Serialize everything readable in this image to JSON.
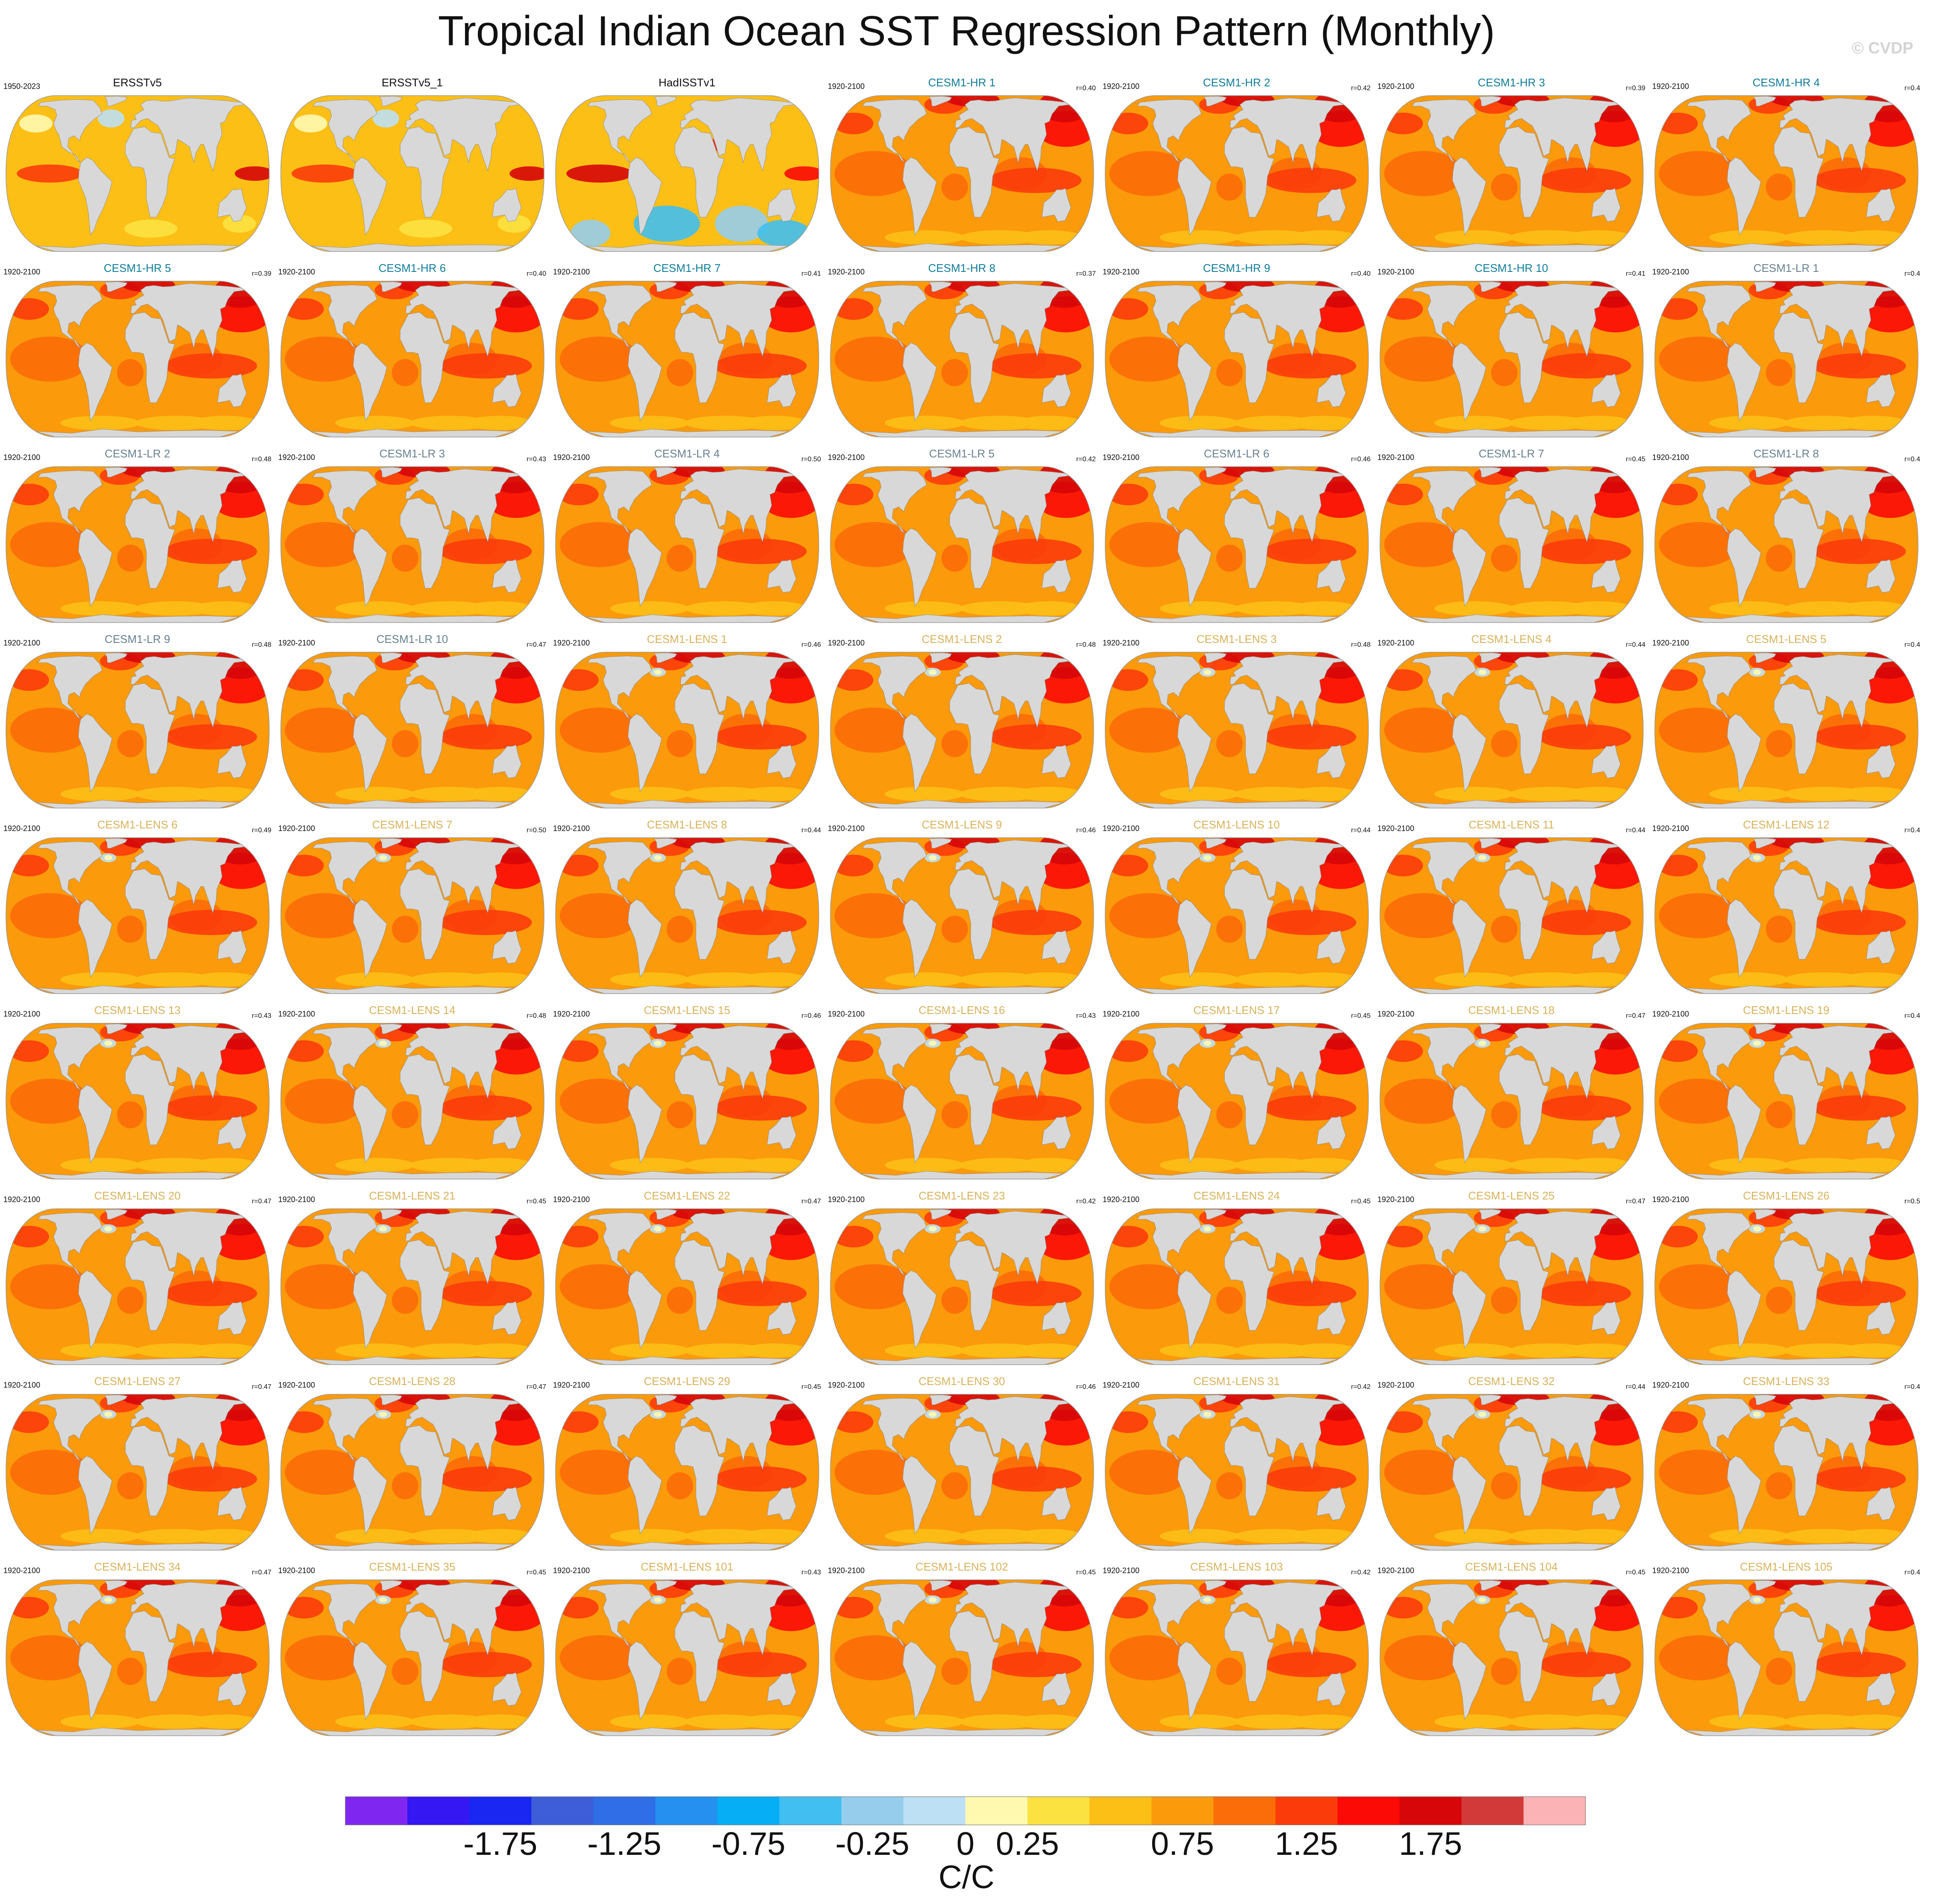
{
  "title": "Tropical Indian Ocean SST Regression Pattern (Monthly)",
  "watermark": "© CVDP",
  "colorbar": {
    "unit": "C/C",
    "tick_labels": [
      "-1.75",
      "-1.25",
      "-0.75",
      "-0.25",
      "0",
      "0.25",
      "0.75",
      "1.25",
      "1.75"
    ],
    "colors": [
      "#7f27f0",
      "#3417f2",
      "#1a26f2",
      "#3d5ed8",
      "#2f6ee6",
      "#2590f0",
      "#06aef5",
      "#40bff0",
      "#96cdec",
      "#bde0f5",
      "#fff9b0",
      "#fce240",
      "#fcbf16",
      "#fb9a0b",
      "#fb6d08",
      "#fb3c0a",
      "#fb0a06",
      "#d60609",
      "#d23a3a",
      "#fcb3b6"
    ]
  },
  "colors": {
    "obs_title": "#111111",
    "hr_title": "#0f7c9b",
    "lr_title": "#67818f",
    "lens_title": "#d9b25b",
    "land": "#d8d8d8"
  },
  "panels": [
    {
      "title": "ERSSTv5",
      "group": "obs",
      "years": "1950-2023",
      "r": ""
    },
    {
      "title": "ERSSTv5_1",
      "group": "obs",
      "years": "",
      "r": ""
    },
    {
      "title": "HadISSTv1",
      "group": "obs",
      "years": "",
      "r": ""
    },
    {
      "title": "CESM1-HR 1",
      "group": "hr",
      "years": "1920-2100",
      "r": "r=0.40"
    },
    {
      "title": "CESM1-HR 2",
      "group": "hr",
      "years": "1920-2100",
      "r": "r=0.42"
    },
    {
      "title": "CESM1-HR 3",
      "group": "hr",
      "years": "1920-2100",
      "r": "r=0.39"
    },
    {
      "title": "CESM1-HR 4",
      "group": "hr",
      "years": "1920-2100",
      "r": "r=0.4"
    },
    {
      "title": "CESM1-HR 5",
      "group": "hr",
      "years": "1920-2100",
      "r": "r=0.39"
    },
    {
      "title": "CESM1-HR 6",
      "group": "hr",
      "years": "1920-2100",
      "r": "r=0.40"
    },
    {
      "title": "CESM1-HR 7",
      "group": "hr",
      "years": "1920-2100",
      "r": "r=0.41"
    },
    {
      "title": "CESM1-HR 8",
      "group": "hr",
      "years": "1920-2100",
      "r": "r=0.37"
    },
    {
      "title": "CESM1-HR 9",
      "group": "hr",
      "years": "1920-2100",
      "r": "r=0.40"
    },
    {
      "title": "CESM1-HR 10",
      "group": "hr",
      "years": "1920-2100",
      "r": "r=0.41"
    },
    {
      "title": "CESM1-LR 1",
      "group": "lr",
      "years": "1920-2100",
      "r": "r=0.4"
    },
    {
      "title": "CESM1-LR 2",
      "group": "lr",
      "years": "1920-2100",
      "r": "r=0.48"
    },
    {
      "title": "CESM1-LR 3",
      "group": "lr",
      "years": "1920-2100",
      "r": "r=0.43"
    },
    {
      "title": "CESM1-LR 4",
      "group": "lr",
      "years": "1920-2100",
      "r": "r=0.50"
    },
    {
      "title": "CESM1-LR 5",
      "group": "lr",
      "years": "1920-2100",
      "r": "r=0.42"
    },
    {
      "title": "CESM1-LR 6",
      "group": "lr",
      "years": "1920-2100",
      "r": "r=0.46"
    },
    {
      "title": "CESM1-LR 7",
      "group": "lr",
      "years": "1920-2100",
      "r": "r=0.45"
    },
    {
      "title": "CESM1-LR 8",
      "group": "lr",
      "years": "1920-2100",
      "r": "r=0.4"
    },
    {
      "title": "CESM1-LR 9",
      "group": "lr",
      "years": "1920-2100",
      "r": "r=0.48"
    },
    {
      "title": "CESM1-LR 10",
      "group": "lr",
      "years": "1920-2100",
      "r": "r=0.47"
    },
    {
      "title": "CESM1-LENS 1",
      "group": "lens",
      "years": "1920-2100",
      "r": "r=0.46"
    },
    {
      "title": "CESM1-LENS 2",
      "group": "lens",
      "years": "1920-2100",
      "r": "r=0.48"
    },
    {
      "title": "CESM1-LENS 3",
      "group": "lens",
      "years": "1920-2100",
      "r": "r=0.48"
    },
    {
      "title": "CESM1-LENS 4",
      "group": "lens",
      "years": "1920-2100",
      "r": "r=0.44"
    },
    {
      "title": "CESM1-LENS 5",
      "group": "lens",
      "years": "1920-2100",
      "r": "r=0.4"
    },
    {
      "title": "CESM1-LENS 6",
      "group": "lens",
      "years": "1920-2100",
      "r": "r=0.49"
    },
    {
      "title": "CESM1-LENS 7",
      "group": "lens",
      "years": "1920-2100",
      "r": "r=0.50"
    },
    {
      "title": "CESM1-LENS 8",
      "group": "lens",
      "years": "1920-2100",
      "r": "r=0.44"
    },
    {
      "title": "CESM1-LENS 9",
      "group": "lens",
      "years": "1920-2100",
      "r": "r=0.46"
    },
    {
      "title": "CESM1-LENS 10",
      "group": "lens",
      "years": "1920-2100",
      "r": "r=0.44"
    },
    {
      "title": "CESM1-LENS 11",
      "group": "lens",
      "years": "1920-2100",
      "r": "r=0.44"
    },
    {
      "title": "CESM1-LENS 12",
      "group": "lens",
      "years": "1920-2100",
      "r": "r=0.4"
    },
    {
      "title": "CESM1-LENS 13",
      "group": "lens",
      "years": "1920-2100",
      "r": "r=0.43"
    },
    {
      "title": "CESM1-LENS 14",
      "group": "lens",
      "years": "1920-2100",
      "r": "r=0.48"
    },
    {
      "title": "CESM1-LENS 15",
      "group": "lens",
      "years": "1920-2100",
      "r": "r=0.46"
    },
    {
      "title": "CESM1-LENS 16",
      "group": "lens",
      "years": "1920-2100",
      "r": "r=0.43"
    },
    {
      "title": "CESM1-LENS 17",
      "group": "lens",
      "years": "1920-2100",
      "r": "r=0.45"
    },
    {
      "title": "CESM1-LENS 18",
      "group": "lens",
      "years": "1920-2100",
      "r": "r=0.47"
    },
    {
      "title": "CESM1-LENS 19",
      "group": "lens",
      "years": "1920-2100",
      "r": "r=0.4"
    },
    {
      "title": "CESM1-LENS 20",
      "group": "lens",
      "years": "1920-2100",
      "r": "r=0.47"
    },
    {
      "title": "CESM1-LENS 21",
      "group": "lens",
      "years": "1920-2100",
      "r": "r=0.45"
    },
    {
      "title": "CESM1-LENS 22",
      "group": "lens",
      "years": "1920-2100",
      "r": "r=0.47"
    },
    {
      "title": "CESM1-LENS 23",
      "group": "lens",
      "years": "1920-2100",
      "r": "r=0.42"
    },
    {
      "title": "CESM1-LENS 24",
      "group": "lens",
      "years": "1920-2100",
      "r": "r=0.45"
    },
    {
      "title": "CESM1-LENS 25",
      "group": "lens",
      "years": "1920-2100",
      "r": "r=0.47"
    },
    {
      "title": "CESM1-LENS 26",
      "group": "lens",
      "years": "1920-2100",
      "r": "r=0.5"
    },
    {
      "title": "CESM1-LENS 27",
      "group": "lens",
      "years": "1920-2100",
      "r": "r=0.47"
    },
    {
      "title": "CESM1-LENS 28",
      "group": "lens",
      "years": "1920-2100",
      "r": "r=0.47"
    },
    {
      "title": "CESM1-LENS 29",
      "group": "lens",
      "years": "1920-2100",
      "r": "r=0.45"
    },
    {
      "title": "CESM1-LENS 30",
      "group": "lens",
      "years": "1920-2100",
      "r": "r=0.46"
    },
    {
      "title": "CESM1-LENS 31",
      "group": "lens",
      "years": "1920-2100",
      "r": "r=0.42"
    },
    {
      "title": "CESM1-LENS 32",
      "group": "lens",
      "years": "1920-2100",
      "r": "r=0.44"
    },
    {
      "title": "CESM1-LENS 33",
      "group": "lens",
      "years": "1920-2100",
      "r": "r=0.4"
    },
    {
      "title": "CESM1-LENS 34",
      "group": "lens",
      "years": "1920-2100",
      "r": "r=0.47"
    },
    {
      "title": "CESM1-LENS 35",
      "group": "lens",
      "years": "1920-2100",
      "r": "r=0.45"
    },
    {
      "title": "CESM1-LENS 101",
      "group": "lens",
      "years": "1920-2100",
      "r": "r=0.43"
    },
    {
      "title": "CESM1-LENS 102",
      "group": "lens",
      "years": "1920-2100",
      "r": "r=0.45"
    },
    {
      "title": "CESM1-LENS 103",
      "group": "lens",
      "years": "1920-2100",
      "r": "r=0.42"
    },
    {
      "title": "CESM1-LENS 104",
      "group": "lens",
      "years": "1920-2100",
      "r": "r=0.45"
    },
    {
      "title": "CESM1-LENS 105",
      "group": "lens",
      "years": "1920-2100",
      "r": "r=0.4"
    }
  ]
}
